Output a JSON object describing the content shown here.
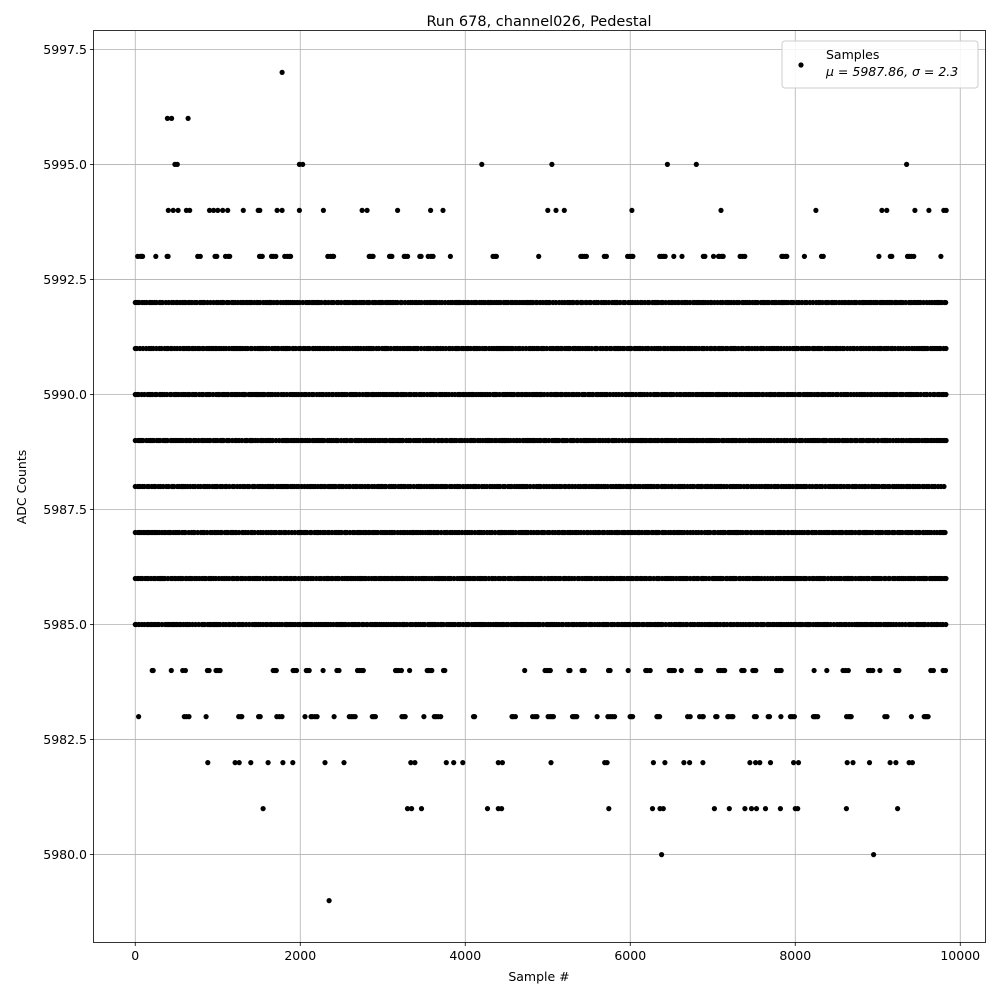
{
  "chart_data": {
    "type": "scatter",
    "title": "Run 678, channel026, Pedestal",
    "xlabel": "Sample #",
    "ylabel": "ADC Counts",
    "xlim": [
      -500,
      10300
    ],
    "ylim": [
      5978.1,
      5997.9
    ],
    "x_ticks": [
      0,
      2000,
      4000,
      6000,
      8000,
      10000
    ],
    "x_tick_labels": [
      "0",
      "2000",
      "4000",
      "6000",
      "8000",
      "10000"
    ],
    "y_ticks": [
      5980.0,
      5982.5,
      5985.0,
      5987.5,
      5990.0,
      5992.5,
      5995.0,
      5997.5
    ],
    "y_tick_labels": [
      "5980.0",
      "5982.5",
      "5985.0",
      "5987.5",
      "5990.0",
      "5992.5",
      "5995.0",
      "5997.5"
    ],
    "grid": true,
    "legend": {
      "placement": "upper right",
      "series_label": "Samples",
      "stats_label": "μ = 5987.86, σ = 2.3"
    },
    "marker_color": "#000000",
    "series": [
      {
        "name": "Samples",
        "density_levels": [
          5985,
          5986,
          5987,
          5988,
          5989,
          5990,
          5991,
          5992
        ],
        "sparse_levels": [
          5983,
          5984,
          5993
        ],
        "sample_count": 9830,
        "outliers": [
          {
            "x": 1780,
            "y": 5997
          },
          {
            "x": 2350,
            "y": 5979
          },
          {
            "x": 6380,
            "y": 5980
          },
          {
            "x": 8950,
            "y": 5980
          },
          {
            "x": 390,
            "y": 5996
          },
          {
            "x": 440,
            "y": 5996
          },
          {
            "x": 640,
            "y": 5996
          },
          {
            "x": 480,
            "y": 5995
          },
          {
            "x": 510,
            "y": 5995
          },
          {
            "x": 1990,
            "y": 5995
          },
          {
            "x": 2030,
            "y": 5995
          },
          {
            "x": 4200,
            "y": 5995
          },
          {
            "x": 5050,
            "y": 5995
          },
          {
            "x": 6450,
            "y": 5995
          },
          {
            "x": 6800,
            "y": 5995
          },
          {
            "x": 9350,
            "y": 5995
          },
          {
            "x": 400,
            "y": 5994
          },
          {
            "x": 460,
            "y": 5994
          },
          {
            "x": 520,
            "y": 5994
          },
          {
            "x": 620,
            "y": 5994
          },
          {
            "x": 660,
            "y": 5994
          },
          {
            "x": 900,
            "y": 5994
          },
          {
            "x": 950,
            "y": 5994
          },
          {
            "x": 1000,
            "y": 5994
          },
          {
            "x": 1060,
            "y": 5994
          },
          {
            "x": 1120,
            "y": 5994
          },
          {
            "x": 1310,
            "y": 5994
          },
          {
            "x": 1490,
            "y": 5994
          },
          {
            "x": 1510,
            "y": 5994
          },
          {
            "x": 1720,
            "y": 5994
          },
          {
            "x": 1780,
            "y": 5994
          },
          {
            "x": 1990,
            "y": 5994
          },
          {
            "x": 2280,
            "y": 5994
          },
          {
            "x": 2750,
            "y": 5994
          },
          {
            "x": 2810,
            "y": 5994
          },
          {
            "x": 3180,
            "y": 5994
          },
          {
            "x": 3580,
            "y": 5994
          },
          {
            "x": 3730,
            "y": 5994
          },
          {
            "x": 5000,
            "y": 5994
          },
          {
            "x": 5100,
            "y": 5994
          },
          {
            "x": 5200,
            "y": 5994
          },
          {
            "x": 6020,
            "y": 5994
          },
          {
            "x": 7100,
            "y": 5994
          },
          {
            "x": 8250,
            "y": 5994
          },
          {
            "x": 9050,
            "y": 5994
          },
          {
            "x": 9110,
            "y": 5994
          },
          {
            "x": 9450,
            "y": 5994
          },
          {
            "x": 9620,
            "y": 5994
          },
          {
            "x": 9800,
            "y": 5994
          },
          {
            "x": 9830,
            "y": 5994
          },
          {
            "x": 880,
            "y": 5982
          },
          {
            "x": 1210,
            "y": 5982
          },
          {
            "x": 1260,
            "y": 5982
          },
          {
            "x": 1400,
            "y": 5982
          },
          {
            "x": 1610,
            "y": 5982
          },
          {
            "x": 1790,
            "y": 5982
          },
          {
            "x": 1910,
            "y": 5982
          },
          {
            "x": 2300,
            "y": 5982
          },
          {
            "x": 2530,
            "y": 5982
          },
          {
            "x": 3340,
            "y": 5982
          },
          {
            "x": 3390,
            "y": 5982
          },
          {
            "x": 3770,
            "y": 5982
          },
          {
            "x": 3860,
            "y": 5982
          },
          {
            "x": 3970,
            "y": 5982
          },
          {
            "x": 4400,
            "y": 5982
          },
          {
            "x": 4450,
            "y": 5982
          },
          {
            "x": 5040,
            "y": 5982
          },
          {
            "x": 5690,
            "y": 5982
          },
          {
            "x": 5720,
            "y": 5982
          },
          {
            "x": 6280,
            "y": 5982
          },
          {
            "x": 6420,
            "y": 5982
          },
          {
            "x": 6650,
            "y": 5982
          },
          {
            "x": 6720,
            "y": 5982
          },
          {
            "x": 6880,
            "y": 5982
          },
          {
            "x": 7450,
            "y": 5982
          },
          {
            "x": 7520,
            "y": 5982
          },
          {
            "x": 7570,
            "y": 5982
          },
          {
            "x": 7700,
            "y": 5982
          },
          {
            "x": 7980,
            "y": 5982
          },
          {
            "x": 8040,
            "y": 5982
          },
          {
            "x": 8630,
            "y": 5982
          },
          {
            "x": 8700,
            "y": 5982
          },
          {
            "x": 8900,
            "y": 5982
          },
          {
            "x": 9150,
            "y": 5982
          },
          {
            "x": 9220,
            "y": 5982
          },
          {
            "x": 9380,
            "y": 5982
          },
          {
            "x": 9420,
            "y": 5982
          },
          {
            "x": 1550,
            "y": 5981
          },
          {
            "x": 3300,
            "y": 5981
          },
          {
            "x": 3350,
            "y": 5981
          },
          {
            "x": 3470,
            "y": 5981
          },
          {
            "x": 4270,
            "y": 5981
          },
          {
            "x": 4400,
            "y": 5981
          },
          {
            "x": 4440,
            "y": 5981
          },
          {
            "x": 5740,
            "y": 5981
          },
          {
            "x": 6270,
            "y": 5981
          },
          {
            "x": 6360,
            "y": 5981
          },
          {
            "x": 6400,
            "y": 5981
          },
          {
            "x": 7020,
            "y": 5981
          },
          {
            "x": 7200,
            "y": 5981
          },
          {
            "x": 7390,
            "y": 5981
          },
          {
            "x": 7470,
            "y": 5981
          },
          {
            "x": 7530,
            "y": 5981
          },
          {
            "x": 7640,
            "y": 5981
          },
          {
            "x": 7820,
            "y": 5981
          },
          {
            "x": 8000,
            "y": 5981
          },
          {
            "x": 8030,
            "y": 5981
          },
          {
            "x": 8620,
            "y": 5981
          },
          {
            "x": 9240,
            "y": 5981
          }
        ]
      }
    ]
  }
}
